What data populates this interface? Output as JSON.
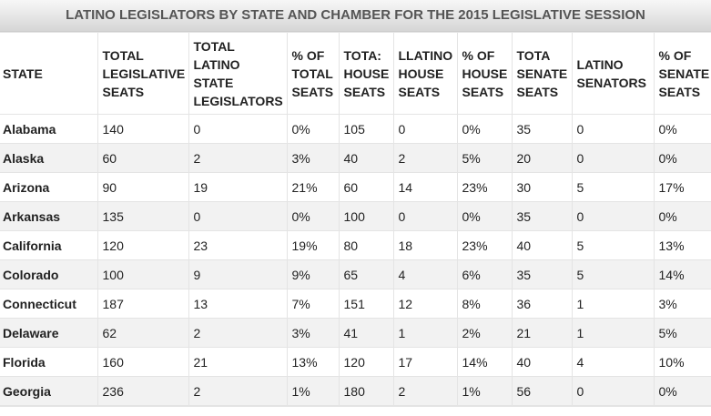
{
  "title": "LATINO LEGISLATORS BY STATE AND CHAMBER FOR THE 2015 LEGISLATIVE SESSION",
  "table": {
    "header": [
      [
        "STATE"
      ],
      [
        "TOTAL",
        "LEGISLATIVE",
        "SEATS"
      ],
      [
        "TOTAL",
        "LATINO",
        "STATE",
        "LEGISLATORS"
      ],
      [
        "% OF",
        "TOTAL",
        "SEATS"
      ],
      [
        "TOTA:",
        "HOUSE",
        "SEATS"
      ],
      [
        "LLATINO",
        "HOUSE",
        "SEATS"
      ],
      [
        "% OF",
        "HOUSE",
        "SEATS"
      ],
      [
        "TOTA",
        "SENATE",
        "SEATS"
      ],
      [
        "LATINO",
        "SENATORS"
      ],
      [
        "% OF",
        "SENATE",
        "SEATS"
      ]
    ],
    "rows": [
      [
        "Alabama",
        "140",
        "0",
        "0%",
        "105",
        "0",
        "0%",
        "35",
        "0",
        "0%"
      ],
      [
        "Alaska",
        "60",
        "2",
        "3%",
        "40",
        "2",
        "5%",
        "20",
        "0",
        "0%"
      ],
      [
        "Arizona",
        "90",
        "19",
        "21%",
        "60",
        "14",
        "23%",
        "30",
        "5",
        "17%"
      ],
      [
        "Arkansas",
        "135",
        "0",
        "0%",
        "100",
        "0",
        "0%",
        "35",
        "0",
        "0%"
      ],
      [
        "California",
        "120",
        "23",
        "19%",
        "80",
        "18",
        "23%",
        "40",
        "5",
        "13%"
      ],
      [
        "Colorado",
        "100",
        "9",
        "9%",
        "65",
        "4",
        "6%",
        "35",
        "5",
        "14%"
      ],
      [
        "Connecticut",
        "187",
        "13",
        "7%",
        "151",
        "12",
        "8%",
        "36",
        "1",
        "3%"
      ],
      [
        "Delaware",
        "62",
        "2",
        "3%",
        "41",
        "1",
        "2%",
        "21",
        "1",
        "5%"
      ],
      [
        "Florida",
        "160",
        "21",
        "13%",
        "120",
        "17",
        "14%",
        "40",
        "4",
        "10%"
      ],
      [
        "Georgia",
        "236",
        "2",
        "1%",
        "180",
        "2",
        "1%",
        "56",
        "0",
        "0%"
      ]
    ]
  }
}
